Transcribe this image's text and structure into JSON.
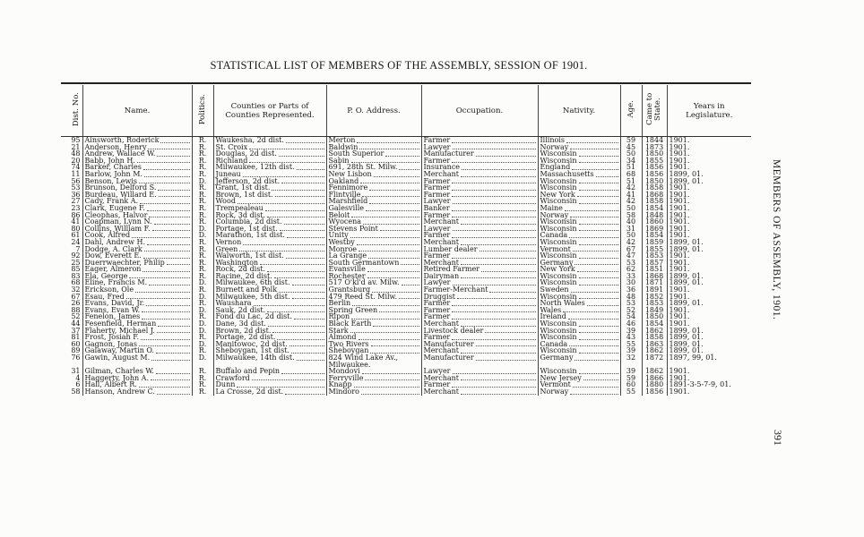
{
  "title": "STATISTICAL LIST OF MEMBERS OF THE ASSEMBLY, SESSION OF 1901.",
  "running_head": "MEMBERS OF ASSEMBLY, 1901.",
  "page_number": "391",
  "columns": [
    "Dist. No.",
    "Name.",
    "Politics.",
    "Counties or Parts of Counties Represented.",
    "P. O. Address.",
    "Occupation.",
    "Nativity.",
    "Age.",
    "Came to State.",
    "Years in Legislature."
  ],
  "rows": [
    [
      "95",
      "Ainsworth, Roderick",
      "R.",
      "Waukesha, 2d dist.",
      "Merton",
      "Farmer",
      "Illinois",
      "59",
      "1844",
      "1901."
    ],
    [
      "21",
      "Anderson, Henry",
      "R.",
      "St. Croix",
      "Baldwin",
      "Lawyer",
      "Norway",
      "45",
      "1873",
      "1901."
    ],
    [
      "48",
      "Andrew, Wallace W.",
      "R.",
      "Douglas, 2d dist.",
      "South Superior",
      "Manufacturer",
      "Wisconsin",
      "50",
      "1850",
      "1901."
    ],
    [
      "20",
      "Babb, John H.",
      "R.",
      "Richland",
      "Sabin",
      "Farmer",
      "Wisconsin",
      "34",
      "1855",
      "1901."
    ],
    [
      "74",
      "Barker, Charles",
      "R.",
      "Milwaukee, 12th dist.",
      "691, 28th St. Milw.",
      "Insurance",
      "England",
      "51",
      "1856",
      "1901."
    ],
    [
      "11",
      "Barlow, John M.",
      "R.",
      "Juneau",
      "New Lisbon",
      "Merchant",
      "Massachusetts",
      "68",
      "1856",
      "1899, 01."
    ],
    [
      "56",
      "Benson, Lewis",
      "D.",
      "Jefferson, 2d dist.",
      "Oakland",
      "Farmer",
      "Wisconsin",
      "51",
      "1850",
      "1899, 01."
    ],
    [
      "53",
      "Brunson, Delford S.",
      "R.",
      "Grant, 1st dist.",
      "Fennimore",
      "Farmer",
      "Wisconsin",
      "42",
      "1858",
      "1901."
    ],
    [
      "36",
      "Burdeau, Willard E.",
      "R.",
      "Brown, 1st dist.",
      "Flintville",
      "Farmer",
      "New York",
      "41",
      "1868",
      "1901."
    ],
    [
      "27",
      "Cady, Frank A.",
      "R.",
      "Wood",
      "Marshfield",
      "Lawyer",
      "Wisconsin",
      "42",
      "1858",
      "1901."
    ],
    [
      "23",
      "Clark, Eugene F.",
      "R.",
      "Trempealeau",
      "Galesville",
      "Banker",
      "Maine",
      "50",
      "1854",
      "1901."
    ],
    [
      "86",
      "Cleophas, Halvor",
      "R.",
      "Rock, 3d dist.",
      "Beloit",
      "Farmer",
      "Norway",
      "58",
      "1848",
      "1901."
    ],
    [
      "41",
      "Coapman, Lynn N.",
      "R.",
      "Columbia, 2d dist.",
      "Wyocena",
      "Merchant",
      "Wisconsin",
      "40",
      "1860",
      "1901."
    ],
    [
      "80",
      "Collins, William F.",
      "D.",
      "Portage, 1st dist.",
      "Stevens Point",
      "Lawyer",
      "Wisconsin",
      "31",
      "1869",
      "1901."
    ],
    [
      "61",
      "Cook, Alfred",
      "D.",
      "Marathon, 1st dist.",
      "Unity",
      "Farmer",
      "Canada",
      "50",
      "1854",
      "1901."
    ],
    [
      "24",
      "Dahl, Andrew H.",
      "R.",
      "Vernon",
      "Westby",
      "Merchant",
      "Wisconsin",
      "42",
      "1859",
      "1899, 01."
    ],
    [
      "7",
      "Dodge, A. Clark",
      "R.",
      "Green",
      "Monroe",
      "Lumber dealer",
      "Vermont",
      "67",
      "1855",
      "1899, 01."
    ],
    [
      "92",
      "Dow, Everett E.",
      "R.",
      "Walworth, 1st dist.",
      "La Grange",
      "Farmer",
      "Wisconsin",
      "47",
      "1853",
      "1901."
    ],
    [
      "25",
      "Duerrwaechter, Philip",
      "R.",
      "Washington",
      "South Germantown",
      "Merchant",
      "Germany",
      "53",
      "1857",
      "1901."
    ],
    [
      "85",
      "Eager, Almeron",
      "R.",
      "Rock, 2d dist.",
      "Evansville",
      "Retired Farmer",
      "New York",
      "62",
      "1851",
      "1901."
    ],
    [
      "83",
      "Ela, George",
      "R.",
      "Racine, 2d dist.",
      "Rochester",
      "Dairyman",
      "Wisconsin",
      "33",
      "1868",
      "1899, 01."
    ],
    [
      "68",
      "Eline, Francis M.",
      "D.",
      "Milwaukee, 6th dist.",
      "517 O'kl'd av. Milw.",
      "Lawyer",
      "Wisconsin",
      "30",
      "1871",
      "1899, 01."
    ],
    [
      "32",
      "Erickson, Ole",
      "R.",
      "Burnett and Polk",
      "Grantsburg",
      "Farmer-Merchant",
      "Sweden",
      "36",
      "1891",
      "1901."
    ],
    [
      "67",
      "Esau, Fred",
      "D.",
      "Milwaukee, 5th dist.",
      "479 Reed St. Milw.",
      "Druggist",
      "Wisconsin",
      "48",
      "1852",
      "1901."
    ],
    [
      "26",
      "Evans, David, Jr.",
      "R.",
      "Waushara",
      "Berlin",
      "Farmer",
      "North Wales",
      "53",
      "1853",
      "1899, 01."
    ],
    [
      "88",
      "Evans, Evan W.",
      "D.",
      "Sauk, 2d dist.",
      "Spring Green",
      "Farmer",
      "Wales",
      "52",
      "1849",
      "1901."
    ],
    [
      "52",
      "Fenelon, James",
      "R.",
      "Fond du Lac, 2d dist.",
      "Ripon",
      "Farmer",
      "Ireland",
      "54",
      "1850",
      "1901."
    ],
    [
      "44",
      "Fesenfield, Herman",
      "D.",
      "Dane, 3d dist.",
      "Black Earth",
      "Merchant",
      "Wisconsin",
      "46",
      "1854",
      "1901."
    ],
    [
      "37",
      "Flaherty, Michael J.",
      "D.",
      "Brown, 2d dist.",
      "Stark",
      "Livestock dealer",
      "Wisconsin",
      "39",
      "1862",
      "1899, 01."
    ],
    [
      "81",
      "Frost, Josiah F.",
      "R.",
      "Portage, 2d dist.",
      "Almond",
      "Farmer",
      "Wisconsin",
      "43",
      "1858",
      "1899, 01."
    ],
    [
      "60",
      "Gagnon, Jonas",
      "D.",
      "Manitowoc, 2d dist.",
      "Two Rivers",
      "Manufacturer",
      "Canada",
      "55",
      "1863",
      "1899, 01."
    ],
    [
      "89",
      "Galaway, Martin O.",
      "R.",
      "Sheboygan, 1st dist.",
      "Sheboygan",
      "Merchant",
      "Wisconsin",
      "39",
      "1862",
      "1899, 01."
    ],
    [
      "76",
      "Gawin, August M.",
      "D.",
      "Milwaukee, 14th dist.",
      "824 Wind Lake Av., Milwaukee.",
      "Manufacturer",
      "Germany",
      "32",
      "1872",
      "1897, 99, 01."
    ],
    [
      "31",
      "Gilman, Charles W.",
      "R.",
      "Buffalo and Pepin",
      "Mondovi",
      "Lawyer",
      "Wisconsin",
      "39",
      "1862",
      "1901."
    ],
    [
      "4",
      "Haggerty, John A.",
      "R.",
      "Crawford",
      "Ferryville",
      "Merchant",
      "New Jersey",
      "59",
      "1866",
      "1901."
    ],
    [
      "6",
      "Hall, Albert R.",
      "R.",
      "Dunn",
      "Knapp",
      "Farmer",
      "Vermont",
      "60",
      "1880",
      "1891-3-5-7-9, 01."
    ],
    [
      "58",
      "Hanson, Andrew C.",
      "R.",
      "La Crosse, 2d dist.",
      "Mindoro",
      "Merchant",
      "Norway",
      "55",
      "1856",
      "1901."
    ]
  ]
}
